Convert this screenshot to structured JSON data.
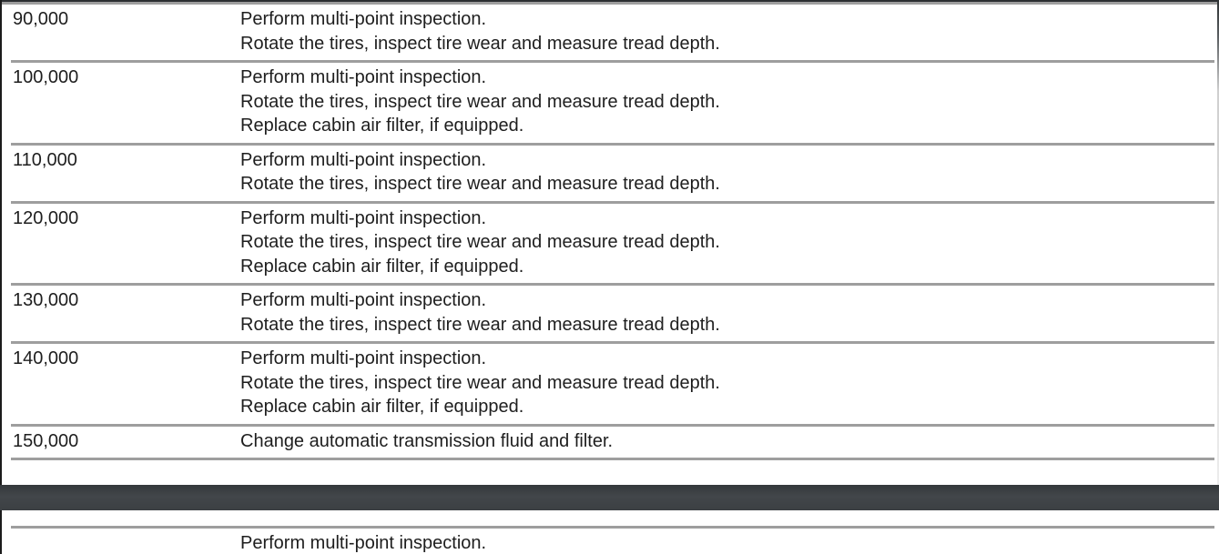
{
  "colors": {
    "page_background": "#ffffff",
    "row_separator": "#9e9e9e",
    "text": "#1e1e1e",
    "page_gap_band": "#3e4245",
    "page_edge": "#1b1b1b"
  },
  "maintenance_schedule": {
    "columns": [
      "mileage",
      "tasks"
    ],
    "rows": [
      {
        "mileage": "90,000",
        "tasks": [
          "Perform multi-point inspection.",
          "Rotate the tires, inspect tire wear and measure tread depth."
        ]
      },
      {
        "mileage": "100,000",
        "tasks": [
          "Perform multi-point inspection.",
          "Rotate the tires, inspect tire wear and measure tread depth.",
          "Replace cabin air filter, if equipped."
        ]
      },
      {
        "mileage": "110,000",
        "tasks": [
          "Perform multi-point inspection.",
          "Rotate the tires, inspect tire wear and measure tread depth."
        ]
      },
      {
        "mileage": "120,000",
        "tasks": [
          "Perform multi-point inspection.",
          "Rotate the tires, inspect tire wear and measure tread depth.",
          "Replace cabin air filter, if equipped."
        ]
      },
      {
        "mileage": "130,000",
        "tasks": [
          "Perform multi-point inspection.",
          "Rotate the tires, inspect tire wear and measure tread depth."
        ]
      },
      {
        "mileage": "140,000",
        "tasks": [
          "Perform multi-point inspection.",
          "Rotate the tires, inspect tire wear and measure tread depth.",
          "Replace cabin air filter, if equipped."
        ]
      },
      {
        "mileage": "150,000",
        "tasks": [
          "Change automatic transmission fluid and filter."
        ]
      }
    ]
  },
  "next_page": {
    "rows": [
      {
        "mileage": "",
        "tasks": [
          "Perform multi-point inspection."
        ]
      }
    ]
  }
}
